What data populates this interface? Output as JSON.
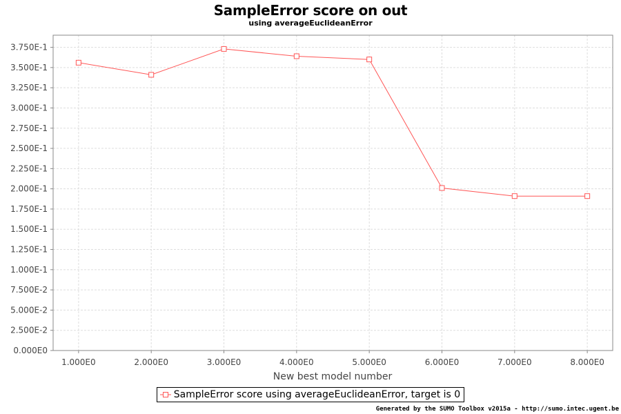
{
  "chart_data": {
    "type": "line",
    "title": "SampleError score on out",
    "subtitle": "using averageEuclideanError",
    "xlabel": "New best model number",
    "ylabel": "",
    "x": [
      1,
      2,
      3,
      4,
      5,
      6,
      7,
      8
    ],
    "x_tick_labels": [
      "1.000E0",
      "2.000E0",
      "3.000E0",
      "4.000E0",
      "5.000E0",
      "6.000E0",
      "7.000E0",
      "8.000E0"
    ],
    "xlim": [
      0.65,
      8.35
    ],
    "ylim": [
      0,
      0.39
    ],
    "y_ticks": [
      0,
      0.025,
      0.05,
      0.075,
      0.1,
      0.125,
      0.15,
      0.175,
      0.2,
      0.225,
      0.25,
      0.275,
      0.3,
      0.325,
      0.35,
      0.375
    ],
    "y_tick_labels": [
      "0.000E0",
      "2.500E-2",
      "5.000E-2",
      "7.500E-2",
      "1.000E-1",
      "1.250E-1",
      "1.500E-1",
      "1.750E-1",
      "2.000E-1",
      "2.250E-1",
      "2.500E-1",
      "2.750E-1",
      "3.000E-1",
      "3.250E-1",
      "3.500E-1",
      "3.750E-1"
    ],
    "grid": true,
    "legend_position": "bottom-center",
    "series": [
      {
        "name": "SampleError score using averageEuclideanError, target is 0",
        "color": "#ff5555",
        "marker": "square",
        "values": [
          0.356,
          0.341,
          0.373,
          0.364,
          0.36,
          0.201,
          0.191,
          0.191
        ]
      }
    ]
  },
  "footer": "Generated by the SUMO Toolbox v2015a - http://sumo.intec.ugent.be"
}
